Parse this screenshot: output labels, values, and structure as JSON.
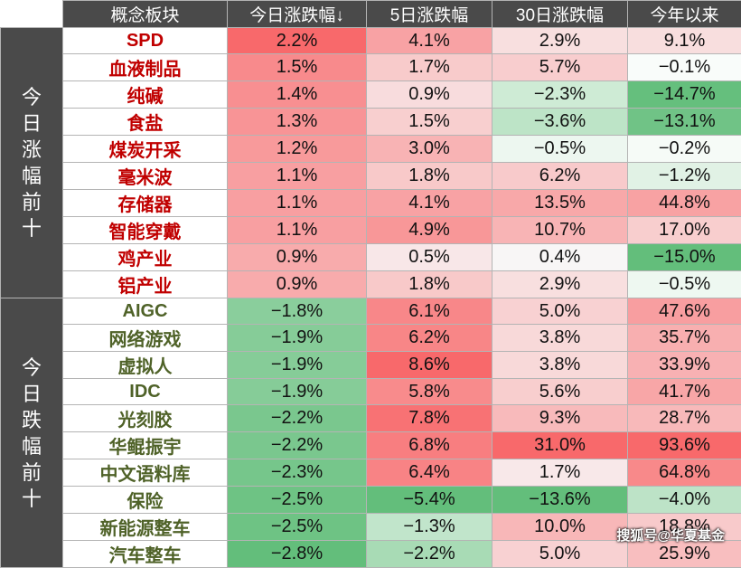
{
  "header": {
    "concept": "概念板块",
    "d1": "今日涨跌幅↓",
    "d5": "5日涨跌幅",
    "d30": "30日涨跌幅",
    "ytd": "今年以来"
  },
  "groups": [
    {
      "label": "今日涨幅前十",
      "kind": "up"
    },
    {
      "label": "今日跌幅前十",
      "kind": "down"
    }
  ],
  "rows": [
    {
      "name": "SPD",
      "d1": "2.2%",
      "d5": "4.1%",
      "d30": "2.9%",
      "ytd": "9.1%"
    },
    {
      "name": "血液制品",
      "d1": "1.5%",
      "d5": "1.7%",
      "d30": "5.7%",
      "ytd": "−0.1%"
    },
    {
      "name": "纯碱",
      "d1": "1.4%",
      "d5": "0.9%",
      "d30": "−2.3%",
      "ytd": "−14.7%"
    },
    {
      "name": "食盐",
      "d1": "1.3%",
      "d5": "1.5%",
      "d30": "−3.6%",
      "ytd": "−13.1%"
    },
    {
      "name": "煤炭开采",
      "d1": "1.2%",
      "d5": "3.0%",
      "d30": "−0.5%",
      "ytd": "−0.2%"
    },
    {
      "name": "毫米波",
      "d1": "1.1%",
      "d5": "1.8%",
      "d30": "6.2%",
      "ytd": "−1.2%"
    },
    {
      "name": "存储器",
      "d1": "1.1%",
      "d5": "4.1%",
      "d30": "13.5%",
      "ytd": "44.8%"
    },
    {
      "name": "智能穿戴",
      "d1": "1.1%",
      "d5": "4.9%",
      "d30": "10.7%",
      "ytd": "17.0%"
    },
    {
      "name": "鸡产业",
      "d1": "0.9%",
      "d5": "0.5%",
      "d30": "0.4%",
      "ytd": "−15.0%"
    },
    {
      "name": "铝产业",
      "d1": "0.9%",
      "d5": "1.8%",
      "d30": "2.9%",
      "ytd": "−0.5%"
    },
    {
      "name": "AIGC",
      "d1": "−1.8%",
      "d5": "6.1%",
      "d30": "5.0%",
      "ytd": "47.6%"
    },
    {
      "name": "网络游戏",
      "d1": "−1.9%",
      "d5": "6.2%",
      "d30": "3.8%",
      "ytd": "35.7%"
    },
    {
      "name": "虚拟人",
      "d1": "−1.9%",
      "d5": "8.6%",
      "d30": "3.8%",
      "ytd": "33.9%"
    },
    {
      "name": "IDC",
      "d1": "−1.9%",
      "d5": "5.8%",
      "d30": "5.6%",
      "ytd": "41.7%"
    },
    {
      "name": "光刻胶",
      "d1": "−2.2%",
      "d5": "7.8%",
      "d30": "9.3%",
      "ytd": "28.7%"
    },
    {
      "name": "华鲲振宇",
      "d1": "−2.2%",
      "d5": "6.8%",
      "d30": "31.0%",
      "ytd": "93.6%"
    },
    {
      "name": "中文语料库",
      "d1": "−2.3%",
      "d5": "6.4%",
      "d30": "1.7%",
      "ytd": "64.8%"
    },
    {
      "name": "保险",
      "d1": "−2.5%",
      "d5": "−5.4%",
      "d30": "−13.6%",
      "ytd": "−4.0%"
    },
    {
      "name": "新能源整车",
      "d1": "−2.5%",
      "d5": "−1.3%",
      "d30": "10.0%",
      "ytd": "18.8%"
    },
    {
      "name": "汽车整车",
      "d1": "−2.8%",
      "d5": "−2.2%",
      "d30": "5.0%",
      "ytd": "25.9%"
    }
  ],
  "watermark": "搜狐号@华夏基金",
  "colors": {
    "header_bg": "#4a4a4a",
    "up_text": "#c00000",
    "down_text": "#4f6228",
    "positive_heat": "#f8696b",
    "negative_heat": "#63be7b"
  }
}
